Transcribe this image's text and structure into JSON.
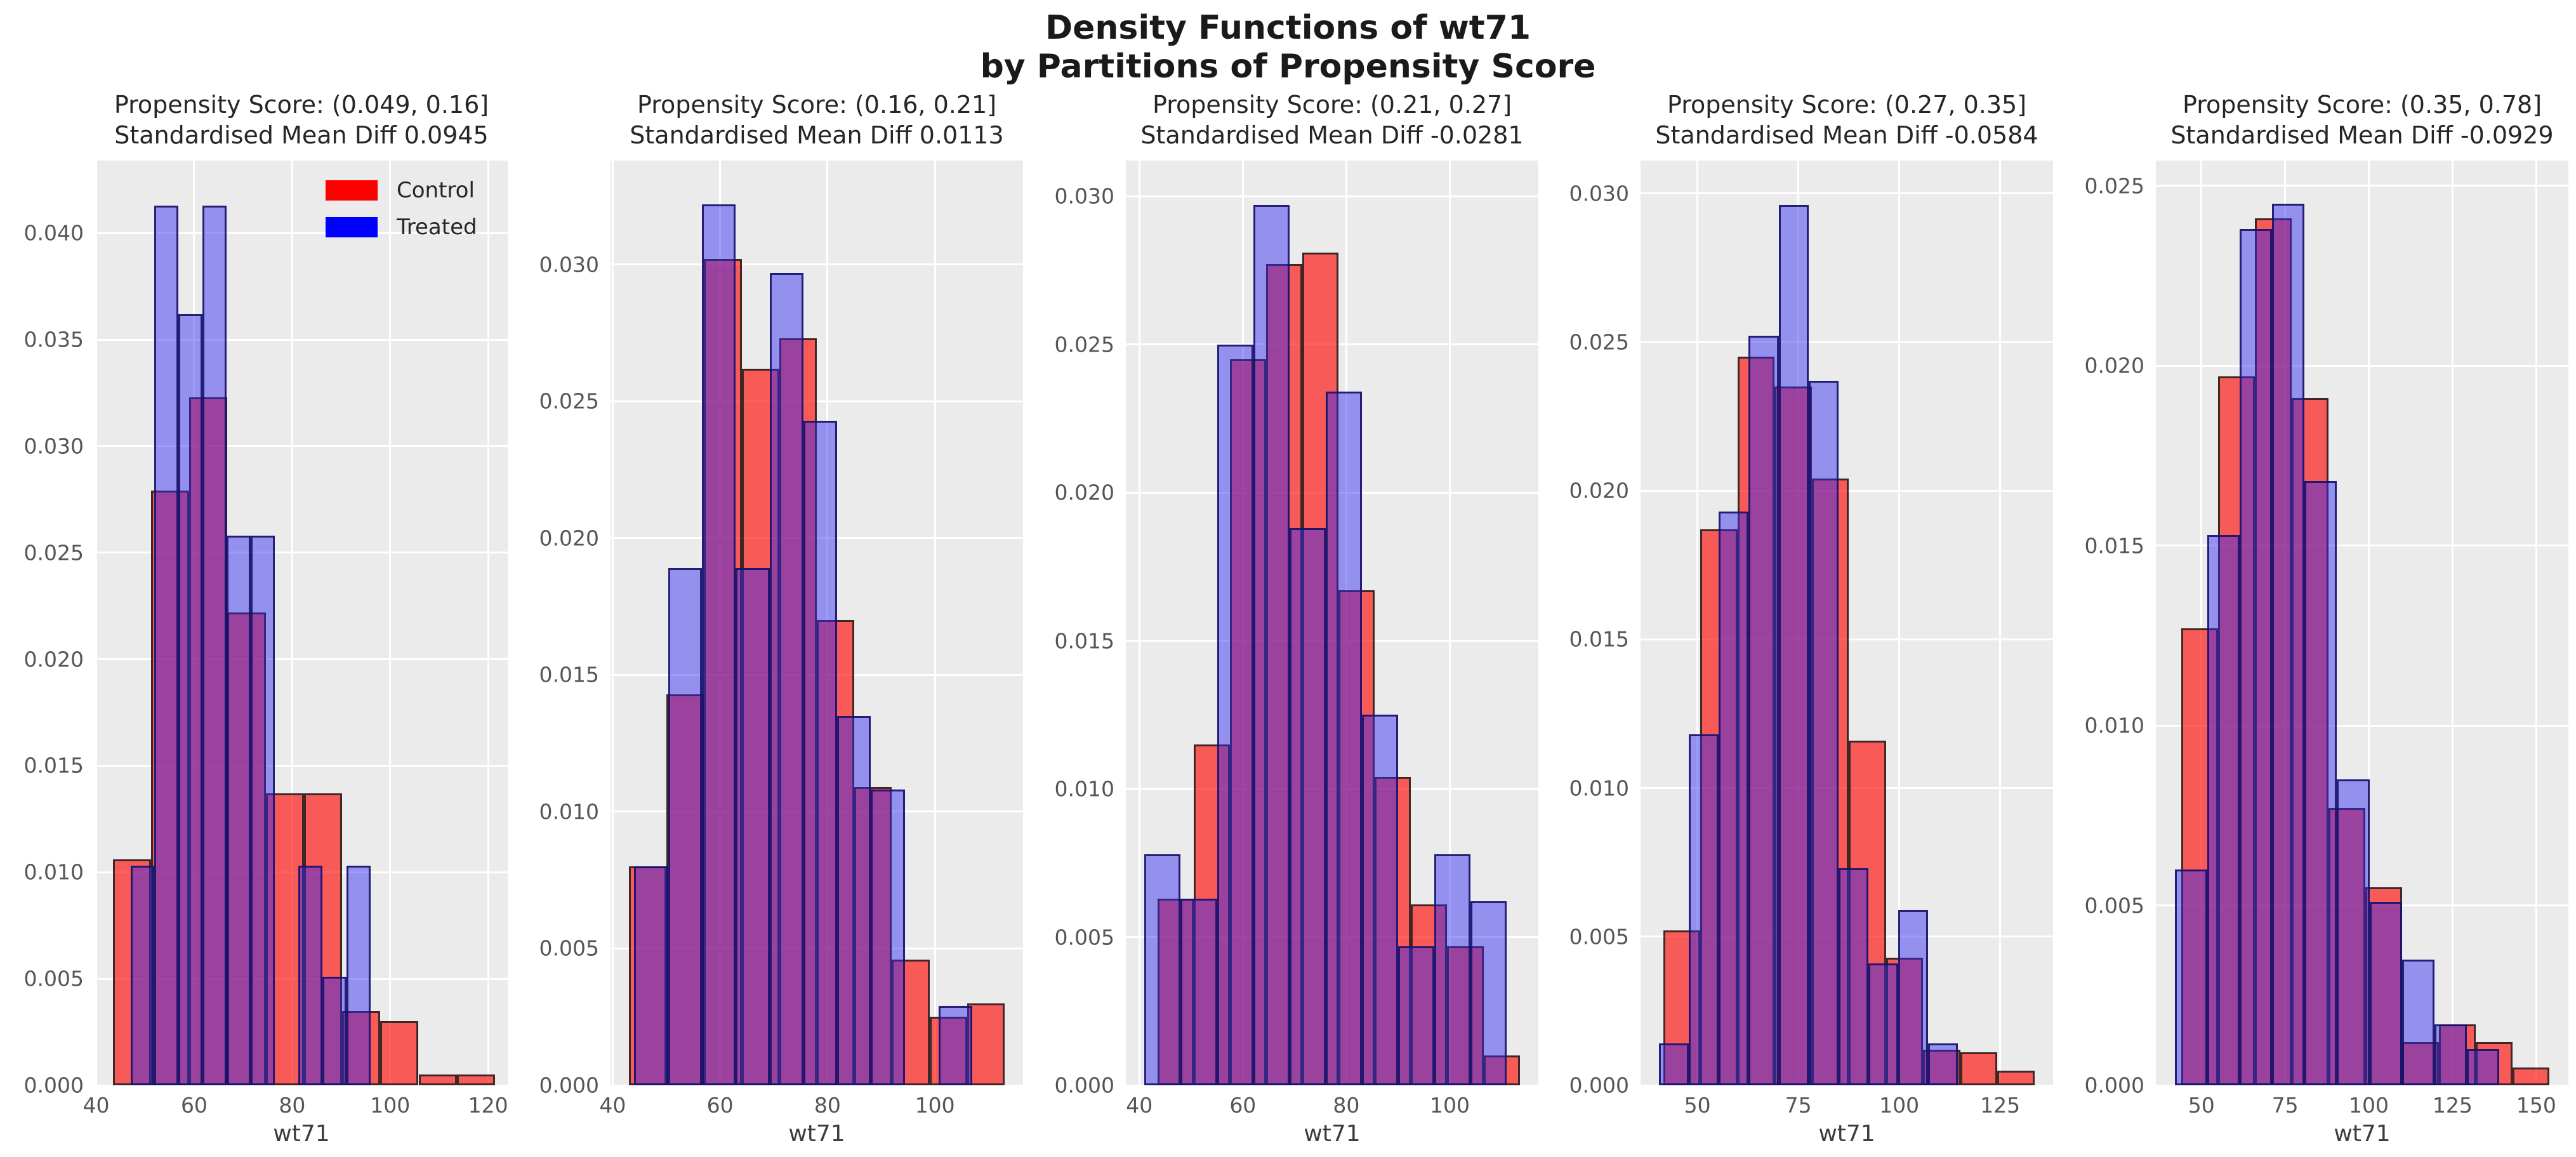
{
  "figure_title": "Density Functions of wt71\nby Partitions of Propensity Score",
  "legend": {
    "position": "upper-right-of-first-panel",
    "items": [
      {
        "label": "Control",
        "color": "#ff0000"
      },
      {
        "label": "Treated",
        "color": "#0000ff"
      }
    ]
  },
  "colors": {
    "control": "#ff0000",
    "treated": "#0000ff",
    "overlap_appearance": "#9b3fa0",
    "panel_background": "#ebebeb",
    "gridline": "#ffffff",
    "tick_label": "#555555",
    "title_text": "#262626"
  },
  "chart_data": [
    {
      "type": "histogram",
      "title": "Propensity Score: (0.049, 0.16]",
      "subtitle": "Standardised Mean Diff 0.0945",
      "xlabel": "wt71",
      "xlim": [
        39.8,
        124.0
      ],
      "ylim": [
        0,
        0.0434
      ],
      "xticks": [
        40,
        60,
        80,
        100,
        120
      ],
      "yticks": [
        0.0,
        0.005,
        0.01,
        0.015,
        0.02,
        0.025,
        0.03,
        0.035,
        0.04
      ],
      "grid": true,
      "series": [
        {
          "name": "Control",
          "bars": [
            [
              43.4,
              51.2,
              0.0106
            ],
            [
              51.2,
              59.0,
              0.0279
            ],
            [
              59.0,
              66.8,
              0.0323
            ],
            [
              66.8,
              74.6,
              0.0222
            ],
            [
              74.6,
              82.4,
              0.0137
            ],
            [
              82.4,
              90.2,
              0.0137
            ],
            [
              90.2,
              98.0,
              0.0035
            ],
            [
              98.0,
              105.8,
              0.003
            ],
            [
              105.8,
              113.6,
              0.0005
            ],
            [
              113.6,
              121.4,
              0.0005
            ]
          ]
        },
        {
          "name": "Treated",
          "bars": [
            [
              47.0,
              51.9,
              0.0103
            ],
            [
              51.9,
              56.8,
              0.0413
            ],
            [
              56.8,
              61.7,
              0.0362
            ],
            [
              61.7,
              66.6,
              0.0413
            ],
            [
              66.6,
              71.5,
              0.0258
            ],
            [
              71.5,
              76.4,
              0.0258
            ],
            [
              76.4,
              81.3,
              0.0
            ],
            [
              81.3,
              86.2,
              0.0103
            ],
            [
              86.2,
              91.1,
              0.0051
            ],
            [
              91.1,
              96.0,
              0.0103
            ]
          ]
        }
      ]
    },
    {
      "type": "histogram",
      "title": "Propensity Score: (0.16, 0.21]",
      "subtitle": "Standardised Mean Diff 0.0113",
      "xlabel": "wt71",
      "xlim": [
        39.6,
        116.4
      ],
      "ylim": [
        0,
        0.0338
      ],
      "xticks": [
        40,
        60,
        80,
        100
      ],
      "yticks": [
        0.0,
        0.005,
        0.01,
        0.015,
        0.02,
        0.025,
        0.03
      ],
      "grid": true,
      "series": [
        {
          "name": "Control",
          "bars": [
            [
              43.0,
              50.0,
              0.008
            ],
            [
              50.0,
              57.0,
              0.0143
            ],
            [
              57.0,
              64.0,
              0.0302
            ],
            [
              64.0,
              71.0,
              0.0262
            ],
            [
              71.0,
              78.0,
              0.0273
            ],
            [
              78.0,
              85.0,
              0.017
            ],
            [
              85.0,
              92.0,
              0.0109
            ],
            [
              92.0,
              99.0,
              0.0046
            ],
            [
              99.0,
              106.0,
              0.0025
            ],
            [
              106.0,
              113.0,
              0.003
            ]
          ]
        },
        {
          "name": "Treated",
          "bars": [
            [
              44.0,
              50.3,
              0.008
            ],
            [
              50.3,
              56.6,
              0.0189
            ],
            [
              56.6,
              62.9,
              0.0322
            ],
            [
              62.9,
              69.2,
              0.0189
            ],
            [
              69.2,
              75.5,
              0.0297
            ],
            [
              75.5,
              81.8,
              0.0243
            ],
            [
              81.8,
              88.1,
              0.0135
            ],
            [
              88.1,
              94.4,
              0.0108
            ],
            [
              94.4,
              100.7,
              0.0
            ],
            [
              100.7,
              107.0,
              0.0029
            ]
          ]
        }
      ]
    },
    {
      "type": "histogram",
      "title": "Propensity Score: (0.21, 0.27]",
      "subtitle": "Standardised Mean Diff -0.0281",
      "xlabel": "wt71",
      "xlim": [
        37.4,
        117.1
      ],
      "ylim": [
        0,
        0.0312
      ],
      "xticks": [
        40,
        60,
        80,
        100
      ],
      "yticks": [
        0.0,
        0.005,
        0.01,
        0.015,
        0.02,
        0.025,
        0.03
      ],
      "grid": true,
      "series": [
        {
          "name": "Control",
          "bars": [
            [
              43.5,
              50.5,
              0.0063
            ],
            [
              50.5,
              57.5,
              0.0115
            ],
            [
              57.5,
              64.5,
              0.0245
            ],
            [
              64.5,
              71.5,
              0.0277
            ],
            [
              71.5,
              78.5,
              0.0281
            ],
            [
              78.5,
              85.5,
              0.0167
            ],
            [
              85.5,
              92.5,
              0.0104
            ],
            [
              92.5,
              99.5,
              0.0061
            ],
            [
              99.5,
              106.5,
              0.0047
            ],
            [
              106.5,
              113.5,
              0.001
            ]
          ]
        },
        {
          "name": "Treated",
          "bars": [
            [
              41.0,
              48.0,
              0.0078
            ],
            [
              48.0,
              55.0,
              0.0063
            ],
            [
              55.0,
              62.0,
              0.025
            ],
            [
              62.0,
              69.0,
              0.0297
            ],
            [
              69.0,
              76.0,
              0.0188
            ],
            [
              76.0,
              83.0,
              0.0234
            ],
            [
              83.0,
              90.0,
              0.0125
            ],
            [
              90.0,
              97.0,
              0.0047
            ],
            [
              97.0,
              104.0,
              0.0078
            ],
            [
              104.0,
              111.0,
              0.0062
            ]
          ]
        }
      ]
    },
    {
      "type": "histogram",
      "title": "Propensity Score: (0.27, 0.35]",
      "subtitle": "Standardised Mean Diff -0.0584",
      "xlabel": "wt71",
      "xlim": [
        35.9,
        138.1
      ],
      "ylim": [
        0,
        0.0311
      ],
      "xticks": [
        50,
        75,
        100,
        125
      ],
      "yticks": [
        0.0,
        0.005,
        0.01,
        0.015,
        0.02,
        0.025,
        0.03
      ],
      "grid": true,
      "series": [
        {
          "name": "Control",
          "bars": [
            [
              41.5,
              50.7,
              0.0052
            ],
            [
              50.7,
              59.9,
              0.0187
            ],
            [
              59.9,
              69.1,
              0.0245
            ],
            [
              69.1,
              78.3,
              0.0235
            ],
            [
              78.3,
              87.5,
              0.0204
            ],
            [
              87.5,
              96.7,
              0.0116
            ],
            [
              96.7,
              105.9,
              0.0043
            ],
            [
              105.9,
              115.1,
              0.0012
            ],
            [
              115.1,
              124.3,
              0.0011
            ],
            [
              124.3,
              133.5,
              0.0005
            ]
          ]
        },
        {
          "name": "Treated",
          "bars": [
            [
              40.5,
              47.9,
              0.0014
            ],
            [
              47.9,
              55.3,
              0.0118
            ],
            [
              55.3,
              62.7,
              0.0193
            ],
            [
              62.7,
              70.1,
              0.0252
            ],
            [
              70.1,
              77.5,
              0.0296
            ],
            [
              77.5,
              84.9,
              0.0237
            ],
            [
              84.9,
              92.3,
              0.0073
            ],
            [
              92.3,
              99.7,
              0.0041
            ],
            [
              99.7,
              107.1,
              0.0059
            ],
            [
              107.1,
              114.5,
              0.0014
            ]
          ]
        }
      ]
    },
    {
      "type": "histogram",
      "title": "Propensity Score: (0.35, 0.78]",
      "subtitle": "Standardised Mean Diff -0.0929",
      "xlabel": "wt71",
      "xlim": [
        36.4,
        159.6
      ],
      "ylim": [
        0,
        0.0257
      ],
      "xticks": [
        50,
        75,
        100,
        125,
        150
      ],
      "yticks": [
        0.0,
        0.005,
        0.01,
        0.015,
        0.02,
        0.025
      ],
      "grid": true,
      "series": [
        {
          "name": "Control",
          "bars": [
            [
              44.0,
              55.0,
              0.0127
            ],
            [
              55.0,
              66.0,
              0.0197
            ],
            [
              66.0,
              77.0,
              0.0241
            ],
            [
              77.0,
              88.0,
              0.0191
            ],
            [
              88.0,
              99.0,
              0.0077
            ],
            [
              99.0,
              110.0,
              0.0055
            ],
            [
              110.0,
              121.0,
              0.0012
            ],
            [
              121.0,
              132.0,
              0.0017
            ],
            [
              132.0,
              143.0,
              0.0012
            ],
            [
              143.0,
              154.0,
              0.0005
            ]
          ]
        },
        {
          "name": "Treated",
          "bars": [
            [
              42.0,
              51.7,
              0.006
            ],
            [
              51.7,
              61.4,
              0.0153
            ],
            [
              61.4,
              71.1,
              0.0238
            ],
            [
              71.1,
              80.8,
              0.0245
            ],
            [
              80.8,
              90.5,
              0.0168
            ],
            [
              90.5,
              100.2,
              0.0085
            ],
            [
              100.2,
              109.9,
              0.0051
            ],
            [
              109.9,
              119.6,
              0.0035
            ],
            [
              119.6,
              129.3,
              0.0017
            ],
            [
              129.3,
              139.0,
              0.001
            ]
          ]
        }
      ]
    }
  ]
}
